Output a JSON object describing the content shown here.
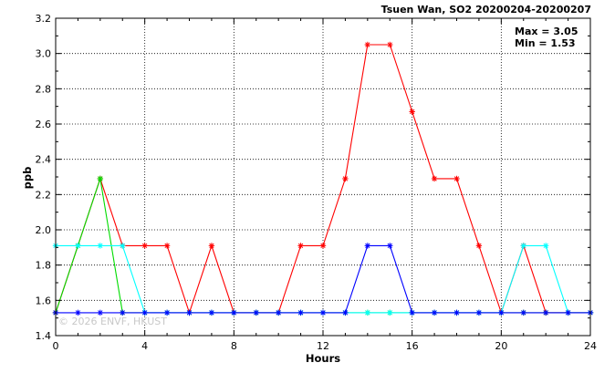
{
  "chart_data": {
    "type": "line",
    "title": "Tsuen Wan, SO2 20200204-20200207",
    "xlabel": "Hours",
    "ylabel": "ppb",
    "xlim": [
      0,
      24
    ],
    "ylim": [
      1.4,
      3.2
    ],
    "xticks": [
      0,
      4,
      8,
      12,
      16,
      20,
      24
    ],
    "yticks": [
      1.4,
      1.6,
      1.8,
      2.0,
      2.2,
      2.4,
      2.6,
      2.8,
      3.0,
      3.2
    ],
    "grid": true,
    "annotations": {
      "max": "Max = 3.05",
      "min": "Min = 1.53"
    },
    "watermark": "© 2026  ENVF, HKUST",
    "series": [
      {
        "color": "#ff0000",
        "x": [
          0,
          1,
          2,
          3,
          4,
          5,
          6,
          7,
          8,
          9,
          10,
          11,
          12,
          13,
          14,
          15,
          16,
          17,
          18,
          19,
          20,
          21,
          22,
          23,
          24
        ],
        "values": [
          1.53,
          1.91,
          2.29,
          1.91,
          1.91,
          1.91,
          1.53,
          1.91,
          1.53,
          1.53,
          1.53,
          1.91,
          1.91,
          2.29,
          3.05,
          3.05,
          2.67,
          2.29,
          2.29,
          1.91,
          1.53,
          1.91,
          1.53,
          1.53,
          1.53
        ]
      },
      {
        "color": "#00dd00",
        "x": [
          0,
          1,
          2,
          3,
          4,
          5,
          6,
          7,
          8,
          9,
          10,
          11,
          12,
          13,
          14,
          15,
          16,
          17,
          18,
          19,
          20,
          21,
          22,
          23,
          24
        ],
        "values": [
          1.53,
          1.91,
          2.29,
          1.53,
          1.53,
          1.53,
          1.53,
          1.53,
          1.53,
          1.53,
          1.53,
          1.53,
          1.53,
          1.53,
          1.53,
          1.53,
          1.53,
          1.53,
          1.53,
          1.53,
          1.53,
          1.53,
          1.53,
          1.53,
          1.53
        ]
      },
      {
        "color": "#00ffff",
        "x": [
          0,
          1,
          2,
          3,
          4,
          5,
          6,
          7,
          8,
          9,
          10,
          11,
          12,
          13,
          14,
          15,
          16,
          17,
          18,
          19,
          20,
          21,
          22,
          23,
          24
        ],
        "values": [
          1.91,
          1.91,
          1.91,
          1.91,
          1.53,
          1.53,
          1.53,
          1.53,
          1.53,
          1.53,
          1.53,
          1.53,
          1.53,
          1.53,
          1.53,
          1.53,
          1.53,
          1.53,
          1.53,
          1.53,
          1.53,
          1.91,
          1.91,
          1.53,
          1.53
        ]
      },
      {
        "color": "#0000ff",
        "x": [
          0,
          1,
          2,
          3,
          4,
          5,
          6,
          7,
          8,
          9,
          10,
          11,
          12,
          13,
          14,
          15,
          16,
          17,
          18,
          19,
          20,
          21,
          22,
          23,
          24
        ],
        "values": [
          1.53,
          1.53,
          1.53,
          1.53,
          1.53,
          1.53,
          1.53,
          1.53,
          1.53,
          1.53,
          1.53,
          1.53,
          1.53,
          1.53,
          1.91,
          1.91,
          1.53,
          1.53,
          1.53,
          1.53,
          1.53,
          1.53,
          1.53,
          1.53,
          1.53
        ]
      }
    ]
  }
}
